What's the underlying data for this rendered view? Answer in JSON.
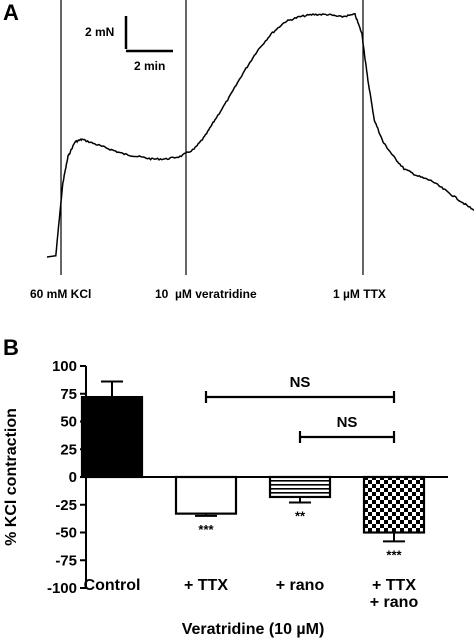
{
  "panels": {
    "a": {
      "letter": "A"
    },
    "b": {
      "letter": "B"
    }
  },
  "trace": {
    "scale_force": "2 mN",
    "scale_time": "2 min",
    "events": [
      {
        "label": "60 mM KCl"
      },
      {
        "label": "10  µM veratridine"
      },
      {
        "label": "1 µM TTX"
      }
    ]
  },
  "chart_data": [
    {
      "type": "line",
      "panel": "A",
      "x": [
        0,
        0.25,
        0.45,
        0.6,
        0.8,
        1.0,
        1.4,
        1.8,
        2.2,
        2.6,
        3.0,
        3.4,
        3.8,
        4.2,
        4.5,
        4.8,
        5.2,
        5.6,
        6.0,
        6.4,
        6.8,
        7.2,
        7.6,
        8.0,
        8.4,
        8.8,
        9.0,
        9.15,
        9.35,
        9.6,
        9.9,
        10.2,
        10.6,
        11.0,
        11.4,
        11.8,
        12.2
      ],
      "y": [
        0.0,
        0.05,
        3.0,
        4.1,
        4.7,
        4.8,
        4.6,
        4.4,
        4.2,
        4.1,
        4.0,
        4.0,
        4.1,
        4.4,
        4.9,
        5.6,
        6.5,
        7.5,
        8.4,
        9.1,
        9.6,
        9.8,
        9.9,
        9.9,
        9.8,
        9.9,
        9.1,
        7.4,
        5.6,
        4.7,
        4.1,
        3.6,
        3.3,
        3.1,
        2.7,
        2.3,
        1.9
      ],
      "scale_bars": {
        "force_mN": 2,
        "time_min": 2
      }
    },
    {
      "type": "bar",
      "panel": "B",
      "categories": [
        [
          "Control"
        ],
        [
          "+ TTX"
        ],
        [
          "+ rano"
        ],
        [
          "+ TTX",
          "+ rano"
        ]
      ],
      "values": [
        72,
        -33,
        -18,
        -50
      ],
      "errors": [
        14,
        2,
        5,
        8
      ],
      "significance": [
        "",
        "***",
        "**",
        "***"
      ],
      "comparisons": [
        {
          "from": 1,
          "to": 3,
          "label": "NS"
        },
        {
          "from": 2,
          "to": 3,
          "label": "NS"
        }
      ],
      "ylabel": "% KCl contraction",
      "xlabel": "Veratridine (10 µM)",
      "ylim": [
        -100,
        100
      ],
      "yticks": [
        100,
        75,
        50,
        25,
        0,
        -25,
        -50,
        -75,
        -100
      ],
      "ytick_labels": [
        "100",
        "75",
        "50",
        "25",
        "0",
        "-25",
        "-50",
        "-75",
        "-100"
      ],
      "fills": [
        "solid-black",
        "white",
        "horizontal-stripes",
        "checkerboard"
      ],
      "grid": false
    }
  ]
}
